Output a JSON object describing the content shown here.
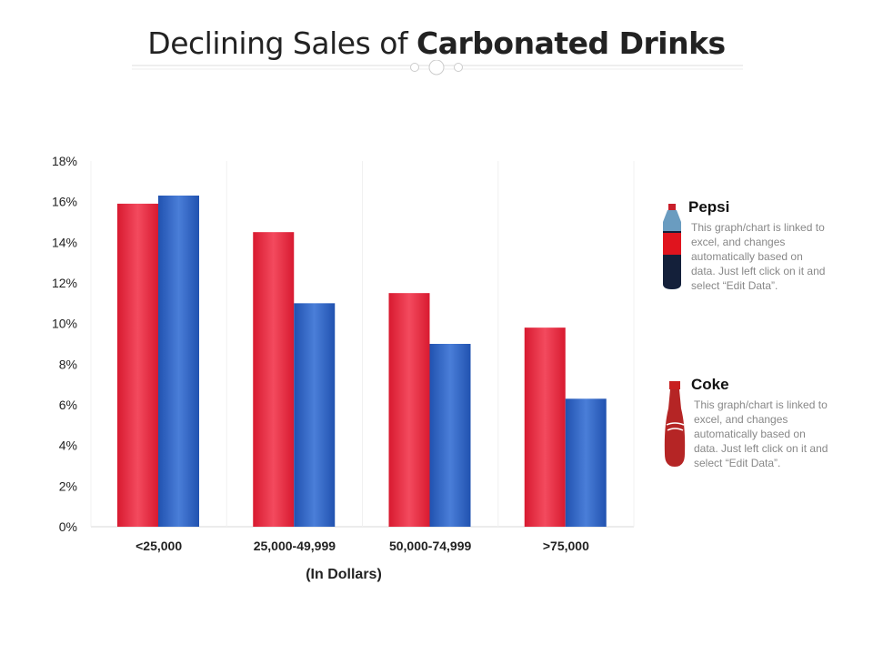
{
  "title": {
    "normal": "Declining Sales of ",
    "bold": "Carbonated Drinks"
  },
  "chart_data": {
    "type": "bar",
    "title": "Declining Sales of Carbonated Drinks",
    "xlabel": "(In Dollars)",
    "ylabel": "",
    "categories": [
      "<25,000",
      "25,000-49,999",
      "50,000-74,999",
      ">75,000"
    ],
    "series": [
      {
        "color": "#e8243c",
        "values": [
          15.9,
          14.5,
          11.5,
          9.8
        ]
      },
      {
        "color": "#2e62c4",
        "values": [
          16.3,
          11.0,
          9.0,
          6.3
        ]
      }
    ],
    "ylim": [
      0,
      18
    ],
    "yticks": [
      "0%",
      "2%",
      "4%",
      "6%",
      "8%",
      "10%",
      "12%",
      "14%",
      "16%",
      "18%"
    ],
    "grid": "vertical separators",
    "legend": "right"
  },
  "legend": [
    {
      "name": "Pepsi",
      "icon": "pepsi-bottle-icon",
      "text": "This graph/chart is linked to excel, and changes automatically based on data. Just left click on it and select “Edit Data”."
    },
    {
      "name": "Coke",
      "icon": "coke-bottle-icon",
      "text": "This graph/chart is linked to excel, and changes automatically based on data. Just left click on it and select “Edit Data”."
    }
  ]
}
